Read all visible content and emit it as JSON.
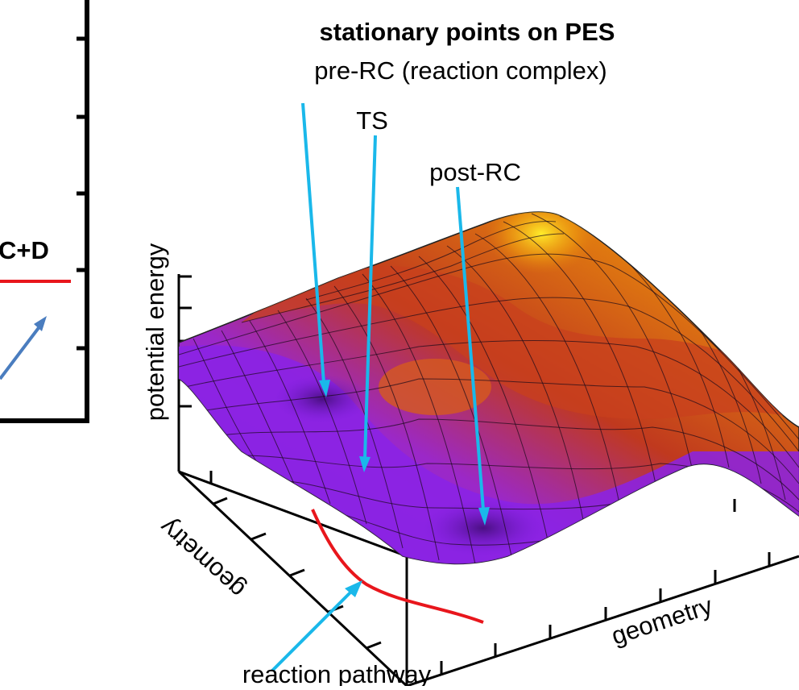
{
  "title": "stationary points on PES",
  "annotations": {
    "pre_rc": "pre-RC (reaction complex)",
    "ts": "TS",
    "post_rc": "post-RC",
    "reaction_pathway": "reaction pathway"
  },
  "axes": {
    "z_label": "potential energy",
    "x_label": "geometry",
    "y_label": "geometry"
  },
  "left_panel": {
    "product_label": "C+D"
  },
  "colors": {
    "arrow": "#1ab8ea",
    "pathway": "#e8161c",
    "left_arrow": "#4a7dbf",
    "surface_low": "#7a1ee0",
    "surface_mid": "#d2451a",
    "surface_high": "#ffe020"
  }
}
